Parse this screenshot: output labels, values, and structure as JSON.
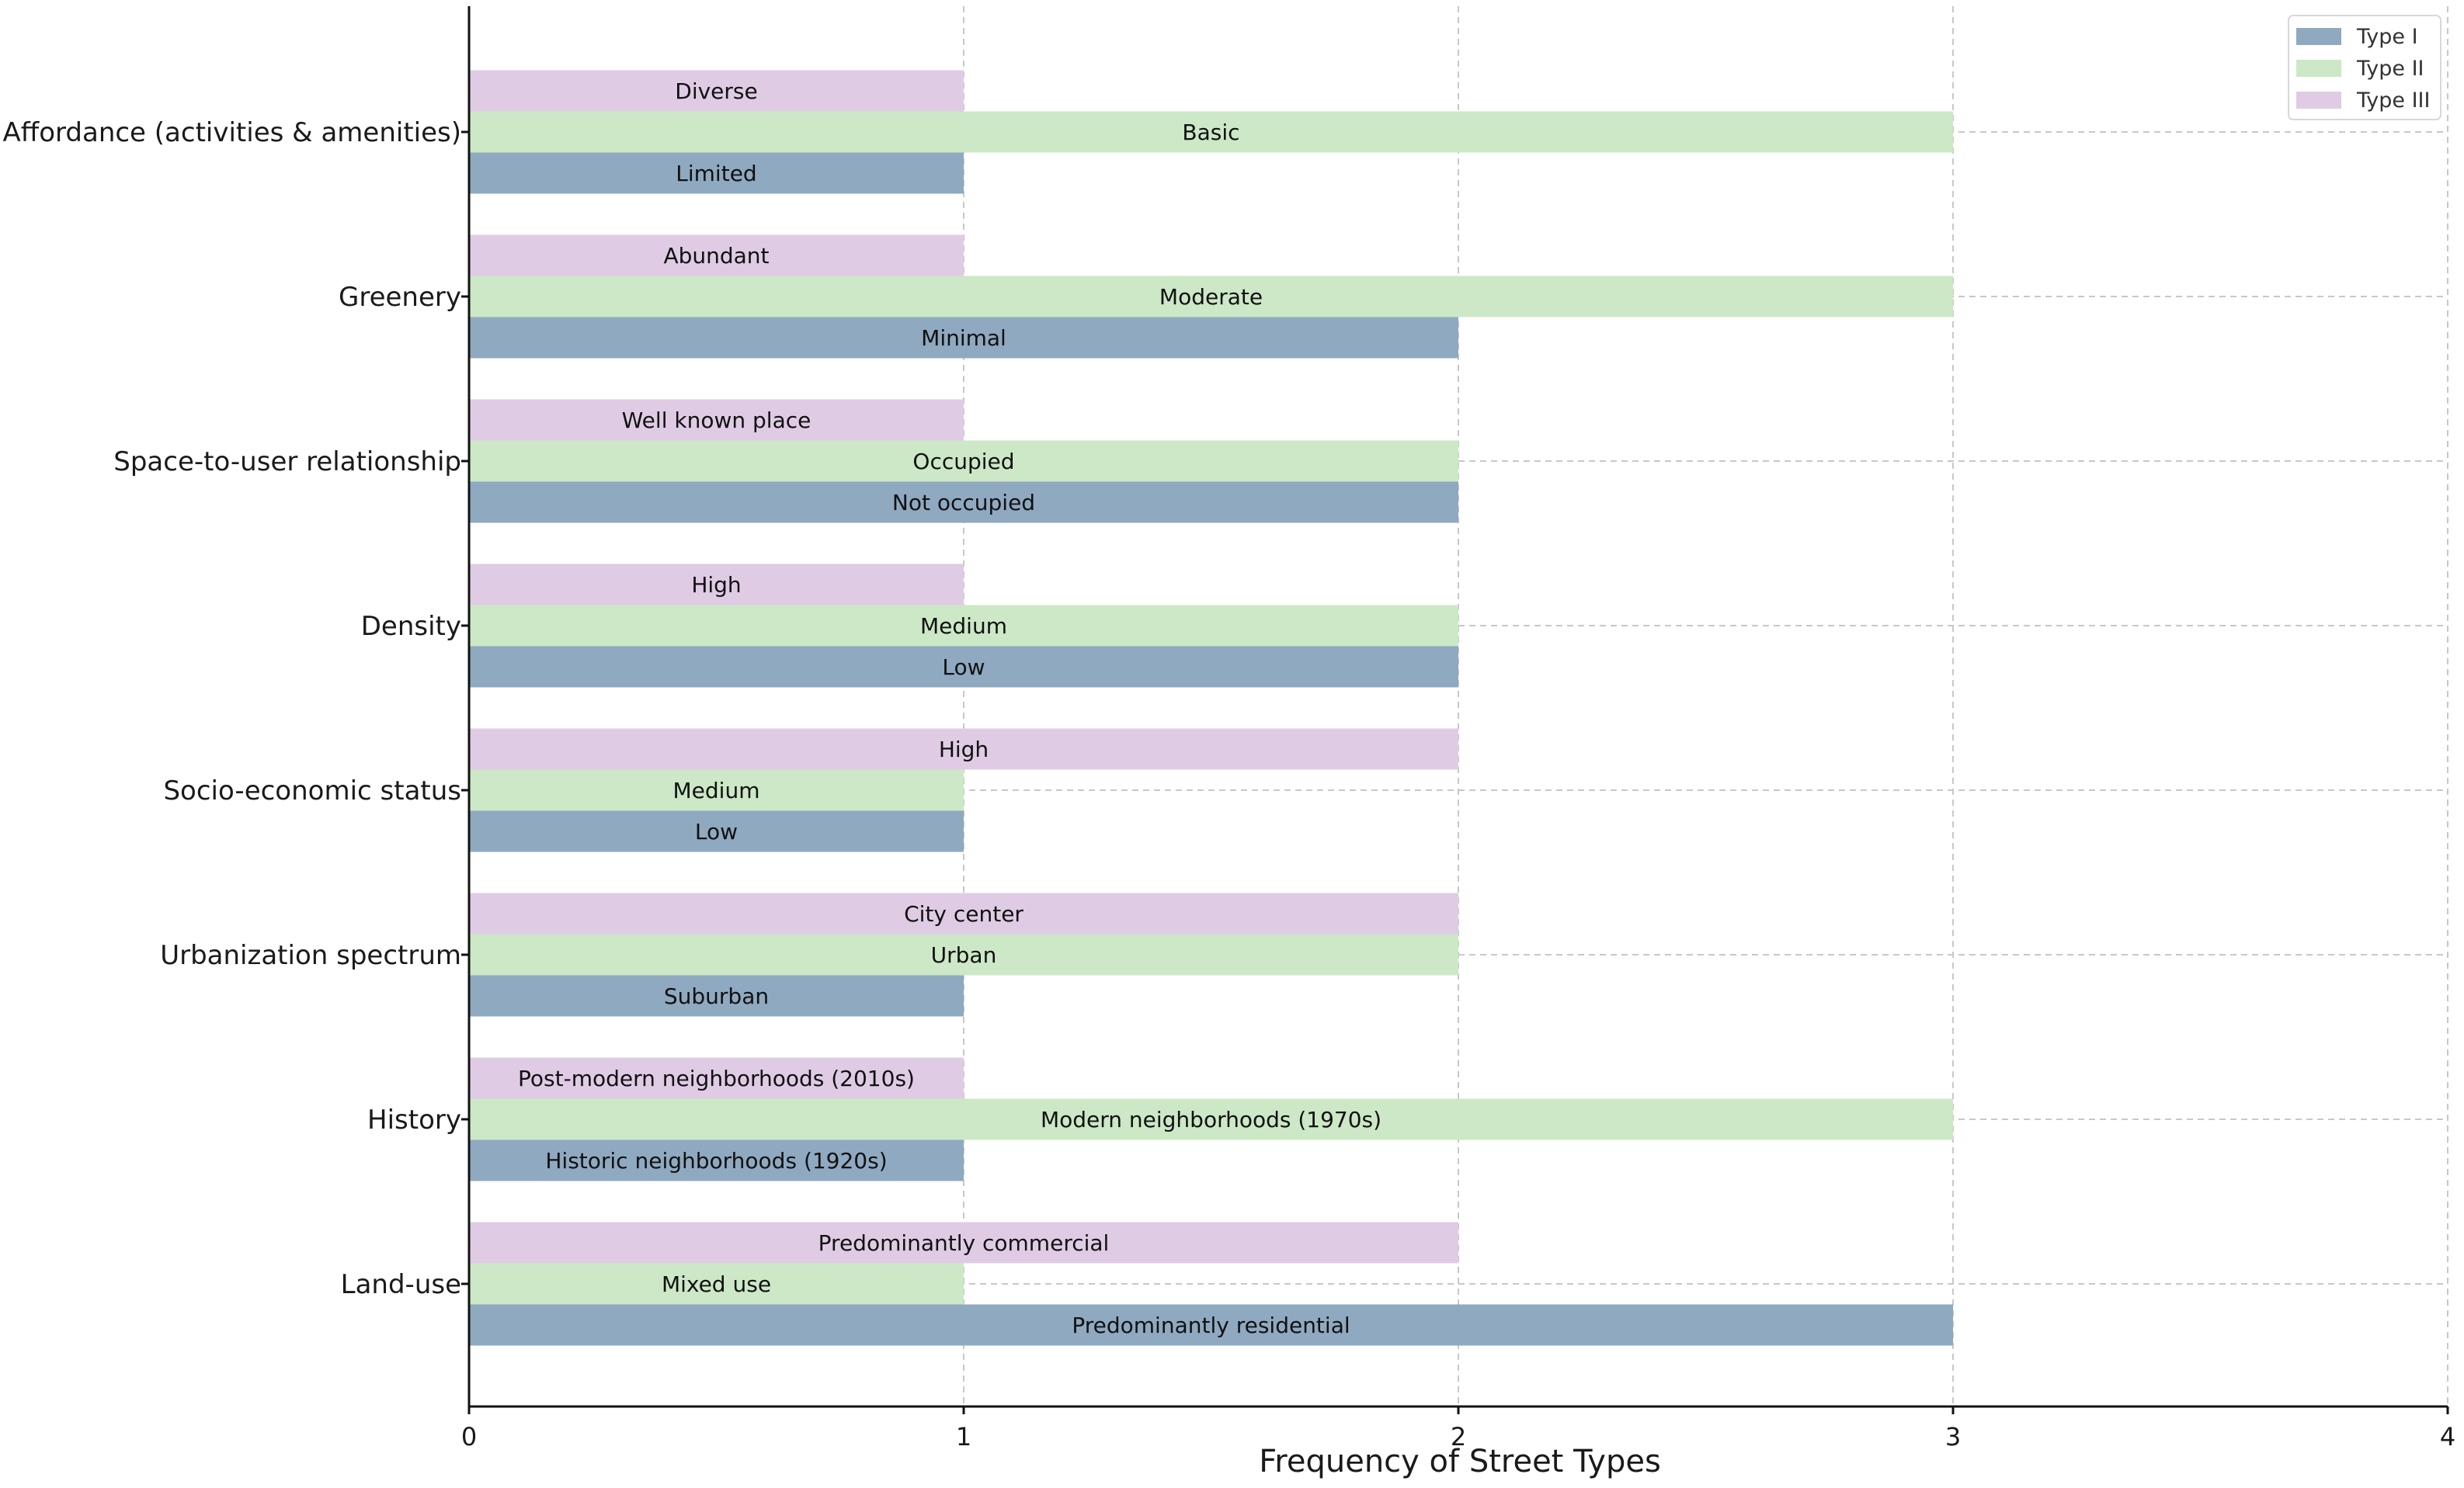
{
  "chart_data": {
    "type": "bar",
    "orientation": "horizontal",
    "title": "",
    "xlabel": "Frequency of Street Types",
    "ylabel": "",
    "xlim": [
      0,
      4
    ],
    "xticks": [
      "0",
      "1",
      "2",
      "3",
      "4"
    ],
    "grid": true,
    "legend_position": "top-right",
    "categories": [
      "Affordance (activities & amenities)",
      "Greenery",
      "Space-to-user relationship",
      "Density",
      "Socio-economic status",
      "Urbanization spectrum",
      "History",
      "Land-use"
    ],
    "series": [
      {
        "name": "Type I",
        "color": "#8fa9c1",
        "values": [
          1,
          2,
          2,
          2,
          1,
          1,
          1,
          3
        ],
        "labels": [
          "Limited",
          "Minimal",
          "Not occupied",
          "Low",
          "Low",
          "Suburban",
          "Historic neighborhoods (1920s)",
          "Predominantly residential"
        ]
      },
      {
        "name": "Type II",
        "color": "#cce8c6",
        "values": [
          3,
          3,
          2,
          2,
          1,
          2,
          3,
          1
        ],
        "labels": [
          "Basic",
          "Moderate",
          "Occupied",
          "Medium",
          "Medium",
          "Urban",
          "Modern neighborhoods (1970s)",
          "Mixed use"
        ]
      },
      {
        "name": "Type III",
        "color": "#dfcce4",
        "values": [
          1,
          1,
          1,
          1,
          2,
          2,
          1,
          2
        ],
        "labels": [
          "Diverse",
          "Abundant",
          "Well known place",
          "High",
          "High",
          "City center",
          "Post-modern neighborhoods (2010s)",
          "Predominantly commercial"
        ]
      }
    ]
  }
}
